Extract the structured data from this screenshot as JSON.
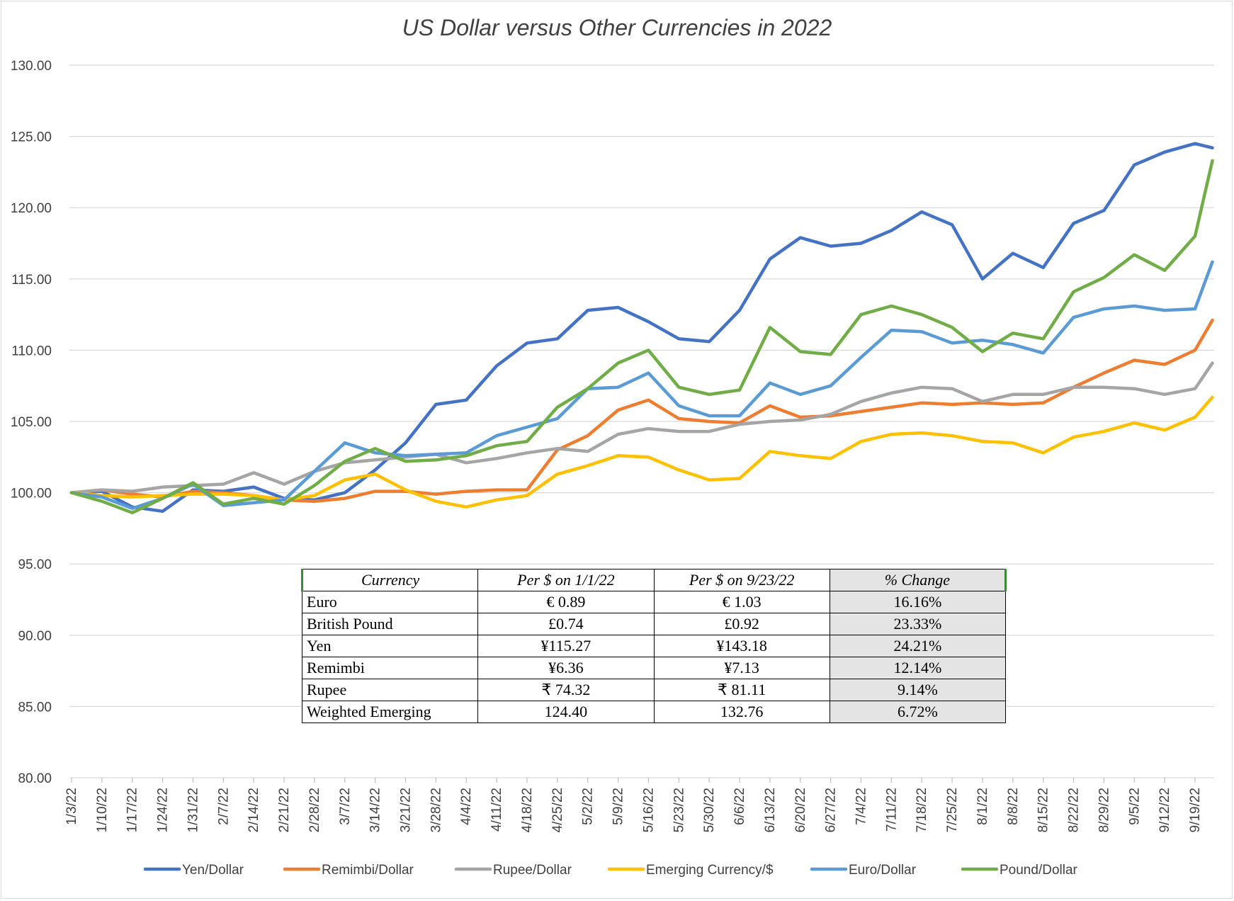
{
  "chart_data": {
    "type": "line",
    "title": "US Dollar versus Other Currencies in 2022",
    "xlabel": "",
    "ylabel": "",
    "ylim": [
      80,
      130
    ],
    "yticks": [
      "130.00",
      "125.00",
      "120.00",
      "115.00",
      "110.00",
      "105.00",
      "100.00",
      "95.00",
      "90.00",
      "85.00",
      "80.00"
    ],
    "x_tick_labels": [
      "1/3/22",
      "1/10/22",
      "1/17/22",
      "1/24/22",
      "1/31/22",
      "2/7/22",
      "2/14/22",
      "2/21/22",
      "2/28/22",
      "3/7/22",
      "3/14/22",
      "3/21/22",
      "3/28/22",
      "4/4/22",
      "4/11/22",
      "4/18/22",
      "4/25/22",
      "5/2/22",
      "5/9/22",
      "5/16/22",
      "5/23/22",
      "5/30/22",
      "6/6/22",
      "6/13/22",
      "6/20/22",
      "6/27/22",
      "7/4/22",
      "7/11/22",
      "7/18/22",
      "7/25/22",
      "8/1/22",
      "8/8/22",
      "8/15/22",
      "8/22/22",
      "8/29/22",
      "9/5/22",
      "9/12/22",
      "9/19/22"
    ],
    "x_dates": [
      "1/3/22",
      "1/10/22",
      "1/17/22",
      "1/24/22",
      "1/31/22",
      "2/7/22",
      "2/14/22",
      "2/21/22",
      "2/28/22",
      "3/7/22",
      "3/14/22",
      "3/21/22",
      "3/28/22",
      "4/4/22",
      "4/11/22",
      "4/18/22",
      "4/25/22",
      "5/2/22",
      "5/9/22",
      "5/16/22",
      "5/23/22",
      "5/30/22",
      "6/6/22",
      "6/13/22",
      "6/20/22",
      "6/27/22",
      "7/4/22",
      "7/11/22",
      "7/18/22",
      "7/25/22",
      "8/1/22",
      "8/8/22",
      "8/15/22",
      "8/22/22",
      "8/29/22",
      "9/5/22",
      "9/12/22",
      "9/19/22",
      "9/23/22"
    ],
    "grid": true,
    "legend_position": "bottom",
    "series": [
      {
        "name": "Yen/Dollar",
        "color": "#4472c4",
        "values": [
          100.0,
          100.1,
          99.0,
          98.7,
          100.2,
          100.1,
          100.4,
          99.6,
          99.5,
          100.0,
          101.6,
          103.5,
          106.2,
          106.5,
          108.9,
          110.5,
          110.8,
          112.8,
          113.0,
          112.0,
          110.8,
          110.6,
          112.8,
          116.4,
          117.9,
          117.3,
          117.5,
          118.4,
          119.7,
          118.8,
          115.0,
          116.8,
          115.8,
          118.9,
          119.8,
          123.0,
          123.9,
          124.5,
          124.2
        ]
      },
      {
        "name": "Remimbi/Dollar",
        "color": "#ed7d31",
        "values": [
          100.0,
          100.2,
          99.9,
          99.7,
          100.1,
          100.0,
          99.8,
          99.5,
          99.4,
          99.6,
          100.1,
          100.1,
          99.9,
          100.1,
          100.2,
          100.2,
          103.0,
          104.0,
          105.8,
          106.5,
          105.2,
          105.0,
          104.9,
          106.1,
          105.3,
          105.4,
          105.7,
          106.0,
          106.3,
          106.2,
          106.3,
          106.2,
          106.3,
          107.4,
          108.4,
          109.3,
          109.0,
          110.0,
          112.1
        ]
      },
      {
        "name": "Rupee/Dollar",
        "color": "#a5a5a5",
        "values": [
          100.0,
          100.2,
          100.1,
          100.4,
          100.5,
          100.6,
          101.4,
          100.6,
          101.5,
          102.1,
          102.3,
          102.5,
          102.7,
          102.1,
          102.4,
          102.8,
          103.1,
          102.9,
          104.1,
          104.5,
          104.3,
          104.3,
          104.8,
          105.0,
          105.1,
          105.5,
          106.4,
          107.0,
          107.4,
          107.3,
          106.4,
          106.9,
          106.9,
          107.4,
          107.4,
          107.3,
          106.9,
          107.3,
          109.1
        ]
      },
      {
        "name": "Emerging Currency/$",
        "color": "#ffc000",
        "values": [
          100.0,
          99.8,
          99.7,
          99.8,
          99.9,
          99.9,
          99.8,
          99.5,
          99.8,
          100.9,
          101.3,
          100.2,
          99.4,
          99.0,
          99.5,
          99.8,
          101.3,
          101.9,
          102.6,
          102.5,
          101.6,
          100.9,
          101.0,
          102.9,
          102.6,
          102.4,
          103.6,
          104.1,
          104.2,
          104.0,
          103.6,
          103.5,
          102.8,
          103.9,
          104.3,
          104.9,
          104.4,
          105.3,
          106.7
        ]
      },
      {
        "name": "Euro/Dollar",
        "color": "#5b9bd5",
        "values": [
          100.0,
          99.7,
          98.9,
          99.6,
          100.6,
          99.1,
          99.3,
          99.5,
          101.5,
          103.5,
          102.8,
          102.6,
          102.7,
          102.8,
          104.0,
          104.6,
          105.2,
          107.3,
          107.4,
          108.4,
          106.1,
          105.4,
          105.4,
          107.7,
          106.9,
          107.5,
          109.5,
          111.4,
          111.3,
          110.5,
          110.7,
          110.4,
          109.8,
          112.3,
          112.9,
          113.1,
          112.8,
          112.9,
          116.2
        ]
      },
      {
        "name": "Pound/Dollar",
        "color": "#70ad47",
        "values": [
          100.0,
          99.4,
          98.6,
          99.6,
          100.7,
          99.2,
          99.6,
          99.2,
          100.5,
          102.2,
          103.1,
          102.2,
          102.3,
          102.6,
          103.3,
          103.6,
          106.0,
          107.3,
          109.1,
          110.0,
          107.4,
          106.9,
          107.2,
          111.6,
          109.9,
          109.7,
          112.5,
          113.1,
          112.5,
          111.6,
          109.9,
          111.2,
          110.8,
          114.1,
          115.1,
          116.7,
          115.6,
          118.0,
          123.3
        ]
      }
    ]
  },
  "table": {
    "headers": [
      "Currency",
      "Per $ on 1/1/22",
      "Per $ on 9/23/22",
      "% Change"
    ],
    "rows": [
      [
        "Euro",
        "€ 0.89",
        "€ 1.03",
        "16.16%"
      ],
      [
        "British Pound",
        "£0.74",
        "£0.92",
        "23.33%"
      ],
      [
        "Yen",
        "¥115.27",
        "¥143.18",
        "24.21%"
      ],
      [
        "Remimbi",
        "¥6.36",
        "¥7.13",
        "12.14%"
      ],
      [
        "Rupee",
        "₹ 74.32",
        "₹ 81.11",
        "9.14%"
      ],
      [
        "Weighted Emerging",
        "124.40",
        "132.76",
        "6.72%"
      ]
    ]
  }
}
